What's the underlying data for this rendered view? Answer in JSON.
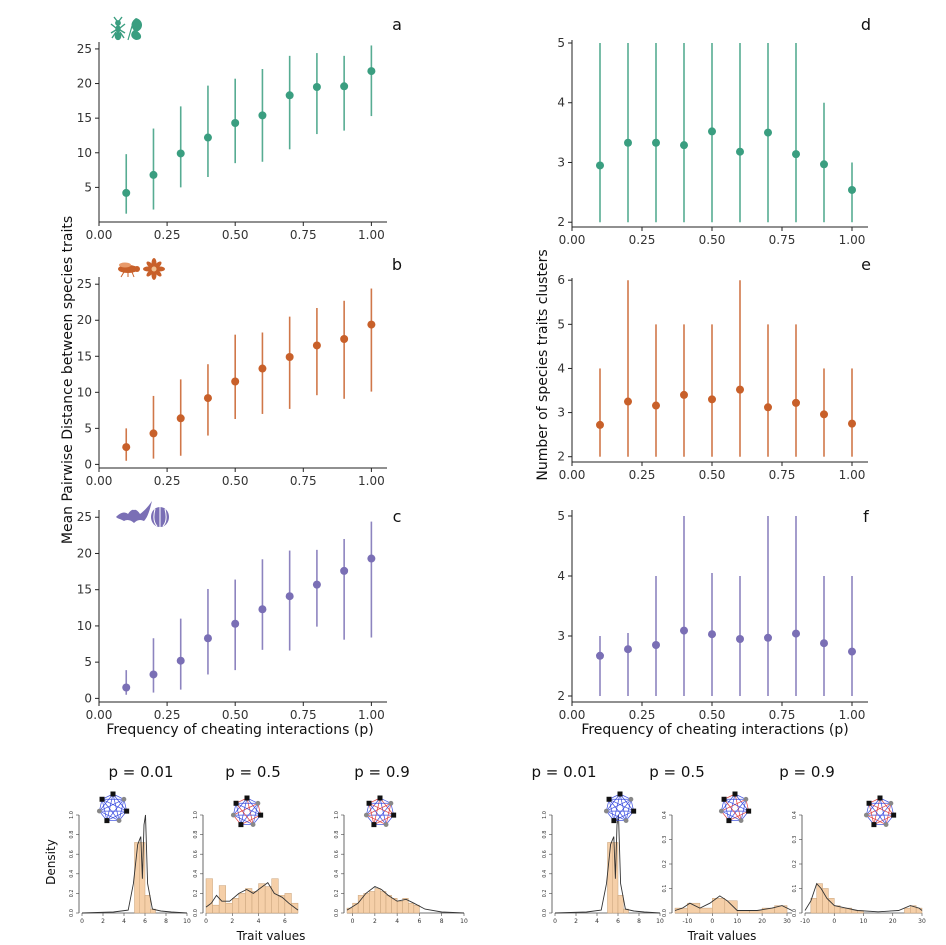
{
  "figure": {
    "ylabel_left": "Mean Pairwise Distance between species traits",
    "ylabel_right": "Number of species traits clusters",
    "xlabel": "Frequency of cheating interactions (p)"
  },
  "colors": {
    "a": "#3a9e80",
    "b": "#c8602a",
    "c": "#7a6fb5",
    "hist_fill": "#f5cfa8",
    "hist_edge": "#c8a27a",
    "net_blue": "#3d4fe0",
    "net_red": "#e04040"
  },
  "icons": {
    "a": [
      "ant-icon",
      "leaf-icon"
    ],
    "b": [
      "fly-icon",
      "flower-icon"
    ],
    "c": [
      "bat-icon",
      "fig-icon"
    ]
  },
  "chart_data": [
    {
      "id": "a",
      "type": "scatter",
      "error_bars": true,
      "letter": "a",
      "x": [
        0.1,
        0.2,
        0.3,
        0.4,
        0.5,
        0.6,
        0.7,
        0.8,
        0.9,
        1.0
      ],
      "y": [
        4.2,
        6.8,
        9.9,
        12.2,
        14.3,
        15.4,
        18.3,
        19.5,
        19.6,
        21.8
      ],
      "low": [
        1.2,
        1.8,
        5.0,
        6.5,
        8.5,
        8.7,
        10.5,
        12.7,
        13.2,
        15.3
      ],
      "high": [
        9.8,
        13.5,
        16.7,
        19.7,
        20.7,
        22.1,
        24.0,
        24.4,
        24.0,
        25.5
      ],
      "xticks": [
        "0.00",
        "0.25",
        "0.50",
        "0.75",
        "1.00"
      ],
      "yticks": [
        5,
        10,
        15,
        20,
        25
      ],
      "xlim": [
        0,
        1.05
      ],
      "ylim": [
        0,
        26
      ]
    },
    {
      "id": "b",
      "type": "scatter",
      "error_bars": true,
      "letter": "b",
      "x": [
        0.1,
        0.2,
        0.3,
        0.4,
        0.5,
        0.6,
        0.7,
        0.8,
        0.9,
        1.0
      ],
      "y": [
        2.4,
        4.3,
        6.4,
        9.2,
        11.5,
        13.3,
        14.9,
        16.5,
        17.4,
        19.4
      ],
      "low": [
        0.5,
        0.8,
        1.2,
        4.0,
        6.3,
        7.0,
        7.7,
        9.6,
        9.1,
        10.1
      ],
      "high": [
        5.0,
        9.5,
        11.8,
        13.9,
        18.0,
        18.3,
        20.5,
        21.7,
        22.7,
        24.4
      ],
      "xticks": [
        "0.00",
        "0.25",
        "0.50",
        "0.75",
        "1.00"
      ],
      "yticks": [
        0,
        5,
        10,
        15,
        20,
        25
      ],
      "xlim": [
        0,
        1.05
      ],
      "ylim": [
        -0.5,
        26
      ]
    },
    {
      "id": "c",
      "type": "scatter",
      "error_bars": true,
      "letter": "c",
      "x": [
        0.1,
        0.2,
        0.3,
        0.4,
        0.5,
        0.6,
        0.7,
        0.8,
        0.9,
        1.0
      ],
      "y": [
        1.5,
        3.3,
        5.2,
        8.3,
        10.3,
        12.3,
        14.1,
        15.7,
        17.6,
        19.3
      ],
      "low": [
        0.5,
        0.8,
        1.2,
        3.3,
        3.9,
        6.7,
        6.6,
        9.9,
        8.1,
        8.4
      ],
      "high": [
        3.9,
        8.3,
        11.0,
        15.1,
        16.4,
        19.2,
        20.4,
        20.5,
        22.0,
        24.4
      ],
      "xticks": [
        "0.00",
        "0.25",
        "0.50",
        "0.75",
        "1.00"
      ],
      "yticks": [
        0,
        5,
        10,
        15,
        20,
        25
      ],
      "xlim": [
        0,
        1.05
      ],
      "ylim": [
        -0.5,
        26
      ]
    },
    {
      "id": "d",
      "type": "scatter",
      "error_bars": true,
      "letter": "d",
      "x": [
        0.1,
        0.2,
        0.3,
        0.4,
        0.5,
        0.6,
        0.7,
        0.8,
        0.9,
        1.0
      ],
      "y": [
        2.95,
        3.33,
        3.33,
        3.29,
        3.52,
        3.18,
        3.5,
        3.14,
        2.97,
        2.54
      ],
      "low": [
        2,
        2,
        2,
        2,
        2,
        2,
        2,
        2,
        2,
        2
      ],
      "high": [
        5,
        5,
        5,
        5,
        5,
        5,
        5,
        5,
        4,
        3
      ],
      "xticks": [
        "0.00",
        "0.25",
        "0.50",
        "0.75",
        "1.00"
      ],
      "yticks": [
        2,
        3,
        4,
        5
      ],
      "xlim": [
        0,
        1.05
      ],
      "ylim": [
        1.92,
        5.05
      ]
    },
    {
      "id": "e",
      "type": "scatter",
      "error_bars": true,
      "letter": "e",
      "x": [
        0.1,
        0.2,
        0.3,
        0.4,
        0.5,
        0.6,
        0.7,
        0.8,
        0.9,
        1.0
      ],
      "y": [
        2.72,
        3.25,
        3.16,
        3.4,
        3.3,
        3.52,
        3.12,
        3.22,
        2.96,
        2.75
      ],
      "low": [
        2,
        2,
        2,
        2,
        2,
        2,
        2,
        2,
        2,
        2
      ],
      "high": [
        4,
        6,
        5,
        5,
        5,
        6,
        5,
        5,
        4,
        4
      ],
      "xticks": [
        "0.00",
        "0.25",
        "0.50",
        "0.75",
        "1.00"
      ],
      "yticks": [
        2,
        3,
        4,
        5,
        6
      ],
      "xlim": [
        0,
        1.05
      ],
      "ylim": [
        1.88,
        6.05
      ]
    },
    {
      "id": "f",
      "type": "scatter",
      "error_bars": true,
      "letter": "f",
      "x": [
        0.1,
        0.2,
        0.3,
        0.4,
        0.5,
        0.6,
        0.7,
        0.8,
        0.9,
        1.0
      ],
      "y": [
        2.67,
        2.78,
        2.85,
        3.09,
        3.03,
        2.95,
        2.97,
        3.04,
        2.88,
        2.74
      ],
      "low": [
        2,
        2,
        2,
        2,
        2,
        2,
        2,
        2,
        2,
        2
      ],
      "high": [
        3,
        3.05,
        4,
        5,
        4.05,
        4,
        5,
        5,
        4,
        4
      ],
      "xticks": [
        "0.00",
        "0.25",
        "0.50",
        "0.75",
        "1.00"
      ],
      "yticks": [
        2,
        3,
        4,
        5
      ],
      "xlim": [
        0,
        1.05
      ],
      "ylim": [
        1.9,
        5.1
      ]
    },
    {
      "id": "h1",
      "type": "bar",
      "title": "p = 0.01",
      "xlim": [
        0,
        10
      ],
      "ylim": [
        0,
        1.0
      ],
      "xticks": [
        "0",
        "2",
        "4",
        "6",
        "8",
        "10"
      ],
      "yticks": [
        "0.0",
        "0.2",
        "0.4",
        "0.6",
        "0.8",
        "1.0"
      ],
      "bins": [
        5,
        5.5,
        6,
        6.5,
        7
      ],
      "heights": [
        0.72,
        0.72,
        0.18,
        0.04
      ],
      "density": [
        [
          0,
          0
        ],
        [
          3,
          0.01
        ],
        [
          4.4,
          0.03
        ],
        [
          4.9,
          0.3
        ],
        [
          5.3,
          0.7
        ],
        [
          5.6,
          0.78
        ],
        [
          5.75,
          0.35
        ],
        [
          5.9,
          0.9
        ],
        [
          6.05,
          1.0
        ],
        [
          6.25,
          0.3
        ],
        [
          6.7,
          0.04
        ],
        [
          7.5,
          0.02
        ],
        [
          8.5,
          0.01
        ],
        [
          10,
          0
        ]
      ]
    },
    {
      "id": "h2",
      "type": "bar",
      "title": "p = 0.5",
      "xlim": [
        0,
        7
      ],
      "ylim": [
        0,
        1.0
      ],
      "xticks": [
        "0",
        "2",
        "4",
        "6"
      ],
      "yticks": [
        "0.0",
        "0.2",
        "0.4",
        "0.6",
        "0.8",
        "1.0"
      ],
      "bins": [
        0,
        0.5,
        1,
        1.5,
        2,
        2.5,
        3,
        3.5,
        4,
        4.5,
        5,
        5.5,
        6,
        6.5,
        7
      ],
      "heights": [
        0.35,
        0.08,
        0.28,
        0.1,
        0.15,
        0.2,
        0.25,
        0.22,
        0.3,
        0.27,
        0.35,
        0.18,
        0.2,
        0.1
      ],
      "density": [
        [
          0,
          0.06
        ],
        [
          0.4,
          0.1
        ],
        [
          0.8,
          0.18
        ],
        [
          1.2,
          0.12
        ],
        [
          1.8,
          0.12
        ],
        [
          2.5,
          0.2
        ],
        [
          3.1,
          0.24
        ],
        [
          3.6,
          0.2
        ],
        [
          4.2,
          0.26
        ],
        [
          4.7,
          0.31
        ],
        [
          5.2,
          0.2
        ],
        [
          5.8,
          0.16
        ],
        [
          6.3,
          0.1
        ],
        [
          7,
          0.03
        ]
      ]
    },
    {
      "id": "h3",
      "type": "bar",
      "title": "p = 0.9",
      "xlim": [
        -0.5,
        10
      ],
      "ylim": [
        0,
        1.0
      ],
      "xticks": [
        "0",
        "2",
        "4",
        "6",
        "8",
        "10"
      ],
      "yticks": [
        "0.0",
        "0.2",
        "0.4",
        "0.6",
        "0.8",
        "1.0"
      ],
      "bins": [
        -0.5,
        0,
        0.5,
        1,
        1.5,
        2,
        2.5,
        3,
        3.5,
        4,
        4.5,
        5,
        5.5,
        6
      ],
      "heights": [
        0.05,
        0.1,
        0.18,
        0.2,
        0.22,
        0.25,
        0.22,
        0.18,
        0.15,
        0.12,
        0.15,
        0.1,
        0.08
      ],
      "density": [
        [
          -0.5,
          0.03
        ],
        [
          0.5,
          0.1
        ],
        [
          1.2,
          0.2
        ],
        [
          2,
          0.27
        ],
        [
          2.6,
          0.24
        ],
        [
          3.2,
          0.18
        ],
        [
          4,
          0.12
        ],
        [
          4.8,
          0.14
        ],
        [
          5.5,
          0.1
        ],
        [
          6.5,
          0.04
        ],
        [
          8,
          0.01
        ],
        [
          10,
          0
        ]
      ]
    },
    {
      "id": "h4",
      "type": "bar",
      "title": "p = 0.01",
      "xlim": [
        0,
        10
      ],
      "ylim": [
        0,
        1.0
      ],
      "xticks": [
        "0",
        "2",
        "4",
        "6",
        "8",
        "10"
      ],
      "yticks": [
        "0.0",
        "0.2",
        "0.4",
        "0.6",
        "0.8",
        "1.0"
      ],
      "bins": [
        5,
        5.5,
        6,
        6.5,
        7
      ],
      "heights": [
        0.72,
        0.72,
        0.18,
        0.04
      ],
      "density": [
        [
          0,
          0
        ],
        [
          3,
          0.01
        ],
        [
          4.4,
          0.03
        ],
        [
          4.9,
          0.3
        ],
        [
          5.3,
          0.7
        ],
        [
          5.6,
          0.78
        ],
        [
          5.75,
          0.35
        ],
        [
          5.9,
          0.9
        ],
        [
          6.05,
          1.0
        ],
        [
          6.25,
          0.3
        ],
        [
          6.7,
          0.04
        ],
        [
          7.5,
          0.02
        ],
        [
          8.5,
          0.01
        ],
        [
          10,
          0
        ]
      ]
    },
    {
      "id": "h5",
      "type": "bar",
      "title": "p = 0.5",
      "xlim": [
        -15,
        32
      ],
      "ylim": [
        0,
        0.4
      ],
      "xticks": [
        "-10",
        "0",
        "10",
        "20",
        "30"
      ],
      "yticks": [
        "0.0",
        "0.1",
        "0.2",
        "0.3",
        "0.4"
      ],
      "bins": [
        -15,
        -10,
        -5,
        0,
        5,
        10,
        15,
        20,
        25,
        30
      ],
      "heights": [
        0.02,
        0.04,
        0.02,
        0.06,
        0.05,
        0.01,
        0.01,
        0.02,
        0.03
      ],
      "density": [
        [
          -15,
          0.01
        ],
        [
          -12,
          0.02
        ],
        [
          -9,
          0.04
        ],
        [
          -5,
          0.02
        ],
        [
          -1,
          0.04
        ],
        [
          3,
          0.07
        ],
        [
          6,
          0.05
        ],
        [
          10,
          0.01
        ],
        [
          18,
          0.01
        ],
        [
          24,
          0.02
        ],
        [
          28,
          0.03
        ],
        [
          32,
          0.01
        ]
      ]
    },
    {
      "id": "h6",
      "type": "bar",
      "title": "p = 0.9",
      "xlim": [
        -10,
        30
      ],
      "ylim": [
        0,
        0.4
      ],
      "xticks": [
        "-10",
        "0",
        "10",
        "20",
        "30"
      ],
      "yticks": [
        "0.0",
        "0.1",
        "0.2",
        "0.3",
        "0.4"
      ],
      "bins": [
        -8,
        -6,
        -4,
        -2,
        0,
        2,
        4,
        6,
        8,
        10,
        24,
        26,
        28,
        30
      ],
      "heights": [
        0.06,
        0.12,
        0.1,
        0.06,
        0.03,
        0.02,
        0.02,
        0.01,
        0.01,
        0,
        0.02,
        0.03,
        0.02
      ],
      "density": [
        [
          -10,
          0.01
        ],
        [
          -8,
          0.05
        ],
        [
          -6,
          0.12
        ],
        [
          -4.5,
          0.1
        ],
        [
          -2.5,
          0.06
        ],
        [
          0,
          0.03
        ],
        [
          4,
          0.02
        ],
        [
          8,
          0.01
        ],
        [
          15,
          0.005
        ],
        [
          22,
          0.01
        ],
        [
          26,
          0.03
        ],
        [
          29,
          0.02
        ],
        [
          30,
          0.01
        ]
      ]
    }
  ],
  "histograms": {
    "density_label": "Density",
    "trait_label": "Trait values"
  }
}
